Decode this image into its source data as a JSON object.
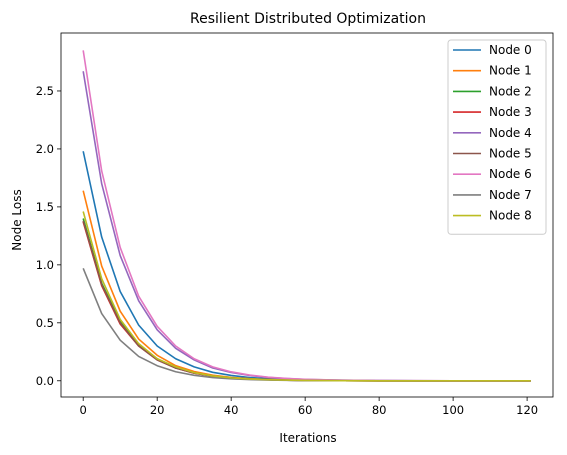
{
  "chart_data": {
    "type": "line",
    "title": "Resilient Distributed Optimization",
    "xlabel": "Iterations",
    "ylabel": "Node Loss",
    "xlim": [
      -6,
      127
    ],
    "ylim": [
      -0.14,
      3.0
    ],
    "xticks": [
      0,
      20,
      40,
      60,
      80,
      100,
      120
    ],
    "yticks": [
      0.0,
      0.5,
      1.0,
      1.5,
      2.0,
      2.5
    ],
    "grid": false,
    "legend": "top-right",
    "x": [
      0,
      5,
      10,
      15,
      20,
      25,
      30,
      35,
      40,
      45,
      50,
      55,
      60,
      70,
      80,
      90,
      100,
      110,
      121
    ],
    "series": [
      {
        "name": "Node 0",
        "color": "#1f77b4",
        "values": [
          1.98,
          1.24,
          0.77,
          0.48,
          0.3,
          0.19,
          0.12,
          0.073,
          0.046,
          0.028,
          0.018,
          0.011,
          0.007,
          0.003,
          0.001,
          0.0,
          0.0,
          0.0,
          0.0
        ]
      },
      {
        "name": "Node 1",
        "color": "#ff7f0e",
        "values": [
          1.64,
          0.99,
          0.6,
          0.36,
          0.22,
          0.13,
          0.08,
          0.048,
          0.029,
          0.018,
          0.011,
          0.007,
          0.004,
          0.001,
          0.0,
          0.0,
          0.0,
          0.0,
          0.0
        ]
      },
      {
        "name": "Node 2",
        "color": "#2ca02c",
        "values": [
          1.4,
          0.84,
          0.51,
          0.31,
          0.19,
          0.11,
          0.068,
          0.041,
          0.025,
          0.015,
          0.009,
          0.005,
          0.003,
          0.001,
          0.0,
          0.0,
          0.0,
          0.0,
          0.0
        ]
      },
      {
        "name": "Node 3",
        "color": "#d62728",
        "values": [
          1.37,
          0.82,
          0.49,
          0.3,
          0.18,
          0.11,
          0.065,
          0.039,
          0.024,
          0.014,
          0.009,
          0.005,
          0.003,
          0.001,
          0.0,
          0.0,
          0.0,
          0.0,
          0.0
        ]
      },
      {
        "name": "Node 4",
        "color": "#9467bd",
        "values": [
          2.67,
          1.7,
          1.08,
          0.69,
          0.44,
          0.28,
          0.18,
          0.11,
          0.072,
          0.046,
          0.029,
          0.019,
          0.012,
          0.005,
          0.002,
          0.001,
          0.0,
          0.0,
          0.0
        ]
      },
      {
        "name": "Node 5",
        "color": "#8c564b",
        "values": [
          1.38,
          0.83,
          0.5,
          0.3,
          0.18,
          0.11,
          0.066,
          0.04,
          0.024,
          0.014,
          0.009,
          0.005,
          0.003,
          0.001,
          0.0,
          0.0,
          0.0,
          0.0,
          0.0
        ]
      },
      {
        "name": "Node 6",
        "color": "#e377c2",
        "values": [
          2.85,
          1.81,
          1.15,
          0.73,
          0.47,
          0.3,
          0.19,
          0.12,
          0.077,
          0.049,
          0.031,
          0.02,
          0.013,
          0.005,
          0.002,
          0.001,
          0.0,
          0.0,
          0.0
        ]
      },
      {
        "name": "Node 7",
        "color": "#7f7f7f",
        "values": [
          0.97,
          0.58,
          0.35,
          0.21,
          0.13,
          0.078,
          0.047,
          0.028,
          0.017,
          0.01,
          0.006,
          0.004,
          0.002,
          0.001,
          0.0,
          0.0,
          0.0,
          0.0,
          0.0
        ]
      },
      {
        "name": "Node 8",
        "color": "#bcbd22",
        "values": [
          1.46,
          0.88,
          0.53,
          0.32,
          0.19,
          0.12,
          0.07,
          0.042,
          0.025,
          0.015,
          0.009,
          0.006,
          0.003,
          0.001,
          0.0,
          0.0,
          0.0,
          0.0,
          0.0
        ]
      }
    ]
  }
}
